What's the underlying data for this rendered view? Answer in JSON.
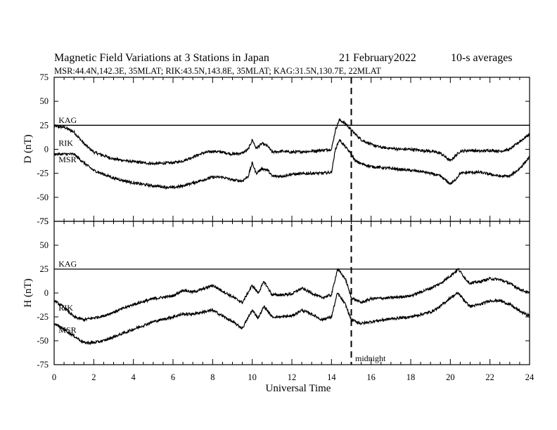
{
  "chart_data": {
    "type": "line",
    "title": "Magnetic Field Variations at 3 Stations in Japan",
    "date": "21 February2022",
    "averaging": "10-s averages",
    "subtitle": "MSR:44.4N,142.3E, 35MLAT;  RIK:43.5N,143.8E, 35MLAT;  KAG:31.5N,130.7E, 22MLAT",
    "xlabel": "Universal Time",
    "xlim": [
      0,
      24
    ],
    "xticks": [
      0,
      2,
      4,
      6,
      8,
      10,
      12,
      14,
      16,
      18,
      20,
      22,
      24
    ],
    "midnight": {
      "x": 15,
      "label": "midnight"
    },
    "panels": [
      {
        "ylabel": "D (nT)",
        "ylim": [
          -75,
          75
        ],
        "yticks": [
          75,
          50,
          25,
          0,
          -25,
          -50,
          -75
        ],
        "series": [
          {
            "name": "KAG",
            "label_at": [
              0.15,
              29
            ],
            "x": [
              0,
              24
            ],
            "y": [
              25,
              25
            ]
          },
          {
            "name": "RIK",
            "label_at": [
              0.15,
              5
            ],
            "x": [
              0,
              0.5,
              1,
              1.5,
              2,
              3,
              4,
              5,
              6,
              6.5,
              7,
              7.5,
              8,
              8.5,
              9,
              9.5,
              9.8,
              10,
              10.2,
              10.5,
              10.8,
              11,
              11.5,
              12,
              13,
              13.5,
              14,
              14.2,
              14.4,
              14.6,
              14.8,
              15,
              15.2,
              15.5,
              16,
              16.5,
              17,
              17.5,
              18,
              18.5,
              19,
              19.5,
              20,
              20.2,
              20.5,
              21,
              21.5,
              22,
              22.5,
              23,
              23.5,
              24
            ],
            "y": [
              24,
              23,
              18,
              6,
              -3,
              -10,
              -13,
              -15,
              -14,
              -12,
              -8,
              -4,
              -2,
              -3,
              -5,
              -4,
              0,
              10,
              1,
              6,
              3,
              -3,
              -2,
              -3,
              -2,
              -1,
              0,
              20,
              31,
              28,
              25,
              20,
              16,
              10,
              5,
              2,
              1,
              0,
              0,
              -1,
              -2,
              -4,
              -12,
              -8,
              -2,
              -1,
              -2,
              -1,
              -2,
              0,
              8,
              16
            ]
          },
          {
            "name": "MSR",
            "label_at": [
              0.15,
              -12
            ],
            "x": [
              0,
              0.5,
              1,
              1.5,
              2,
              3,
              4,
              5,
              6,
              6.5,
              7,
              7.5,
              8,
              8.5,
              9,
              9.5,
              9.8,
              10,
              10.2,
              10.5,
              10.8,
              11,
              11.5,
              12,
              13,
              13.5,
              14,
              14.2,
              14.4,
              14.6,
              14.8,
              15,
              15.2,
              15.5,
              16,
              16.5,
              17,
              17.5,
              18,
              18.5,
              19,
              19.5,
              20,
              20.2,
              20.5,
              21,
              21.5,
              22,
              22.5,
              23,
              23.5,
              24
            ],
            "y": [
              -5,
              -5,
              -5,
              -14,
              -22,
              -30,
              -35,
              -38,
              -40,
              -38,
              -35,
              -32,
              -29,
              -29,
              -32,
              -33,
              -28,
              -14,
              -25,
              -20,
              -22,
              -28,
              -28,
              -26,
              -25,
              -25,
              -24,
              0,
              10,
              5,
              0,
              -5,
              -12,
              -15,
              -18,
              -19,
              -20,
              -21,
              -22,
              -23,
              -25,
              -28,
              -36,
              -33,
              -25,
              -24,
              -24,
              -26,
              -28,
              -28,
              -20,
              -8
            ]
          }
        ]
      },
      {
        "ylabel": "H (nT)",
        "ylim": [
          -75,
          75
        ],
        "yticks": [
          75,
          50,
          25,
          0,
          -25,
          -50,
          -75
        ],
        "series": [
          {
            "name": "KAG",
            "label_at": [
              0.15,
              29
            ],
            "x": [
              0,
              24
            ],
            "y": [
              25,
              25
            ]
          },
          {
            "name": "RIK",
            "label_at": [
              0.15,
              -17
            ],
            "x": [
              0,
              0.5,
              1,
              1.5,
              2,
              2.5,
              3,
              4,
              5,
              6,
              6.5,
              7,
              7.5,
              8,
              8.5,
              9,
              9.5,
              10,
              10.3,
              10.6,
              11,
              11.5,
              12,
              12.5,
              13,
              13.5,
              14,
              14.3,
              14.7,
              15,
              15.5,
              16,
              17,
              18,
              19,
              19.5,
              20,
              20.4,
              20.8,
              21,
              21.5,
              22,
              22.5,
              23,
              23.5,
              24
            ],
            "y": [
              -8,
              -15,
              -25,
              -28,
              -26,
              -24,
              -20,
              -12,
              -6,
              -3,
              3,
              1,
              4,
              8,
              2,
              -4,
              -10,
              8,
              0,
              12,
              -2,
              -2,
              -1,
              5,
              0,
              -5,
              -2,
              25,
              15,
              -5,
              -10,
              -6,
              -5,
              -3,
              5,
              10,
              18,
              25,
              14,
              10,
              12,
              15,
              14,
              10,
              4,
              0
            ]
          },
          {
            "name": "MSR",
            "label_at": [
              0.15,
              -40
            ],
            "x": [
              0,
              0.5,
              1,
              1.5,
              2,
              2.5,
              3,
              4,
              5,
              6,
              6.5,
              7,
              7.5,
              8,
              8.5,
              9,
              9.5,
              10,
              10.3,
              10.6,
              11,
              11.5,
              12,
              12.5,
              13,
              13.5,
              14,
              14.3,
              14.7,
              15,
              15.5,
              16,
              17,
              18,
              19,
              19.5,
              20,
              20.4,
              20.8,
              21,
              21.5,
              22,
              22.5,
              23,
              23.5,
              24
            ],
            "y": [
              -32,
              -38,
              -45,
              -52,
              -52,
              -50,
              -46,
              -38,
              -30,
              -25,
              -22,
              -22,
              -20,
              -18,
              -24,
              -30,
              -37,
              -18,
              -26,
              -14,
              -25,
              -25,
              -24,
              -18,
              -22,
              -28,
              -25,
              0,
              -12,
              -28,
              -32,
              -30,
              -27,
              -25,
              -20,
              -14,
              -5,
              0,
              -10,
              -14,
              -12,
              -8,
              -8,
              -12,
              -19,
              -24
            ]
          }
        ]
      }
    ]
  }
}
